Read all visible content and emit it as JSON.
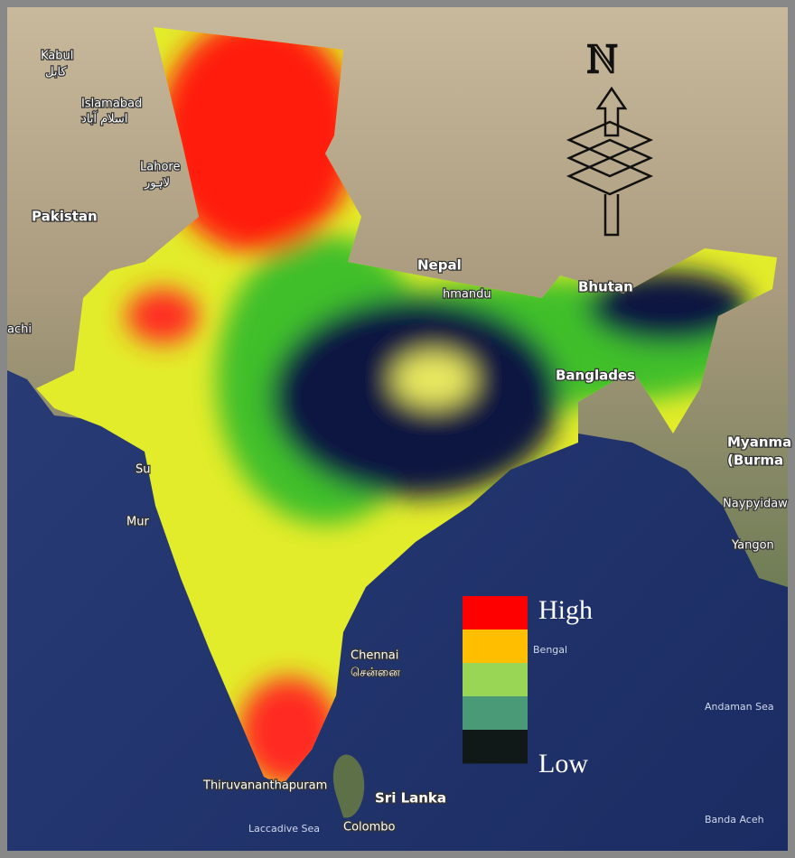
{
  "map": {
    "labels": [
      "Kabul",
      "کابل",
      "Islamabad",
      "اسلام آباد",
      "Lahore",
      "لاہور",
      "Pakistan",
      "Nepal",
      "hmandu",
      "Bhutan",
      "Banglades",
      "Myanma",
      "(Burma",
      "Naypyidaw",
      "Yangon",
      "Chennai",
      "சென்னை",
      "Sri Lanka",
      "Colombo",
      "Thiruvananthapuram",
      "Laccadive Sea",
      "Andaman Sea",
      "Banda Aceh",
      "Bengal",
      "achi",
      "Su",
      "Mur"
    ],
    "compass": "N",
    "legend": {
      "high": "High",
      "low": "Low",
      "colors": [
        "#ff0000",
        "#ffbf00",
        "#99d656",
        "#4a9a78",
        "#111818"
      ]
    }
  }
}
